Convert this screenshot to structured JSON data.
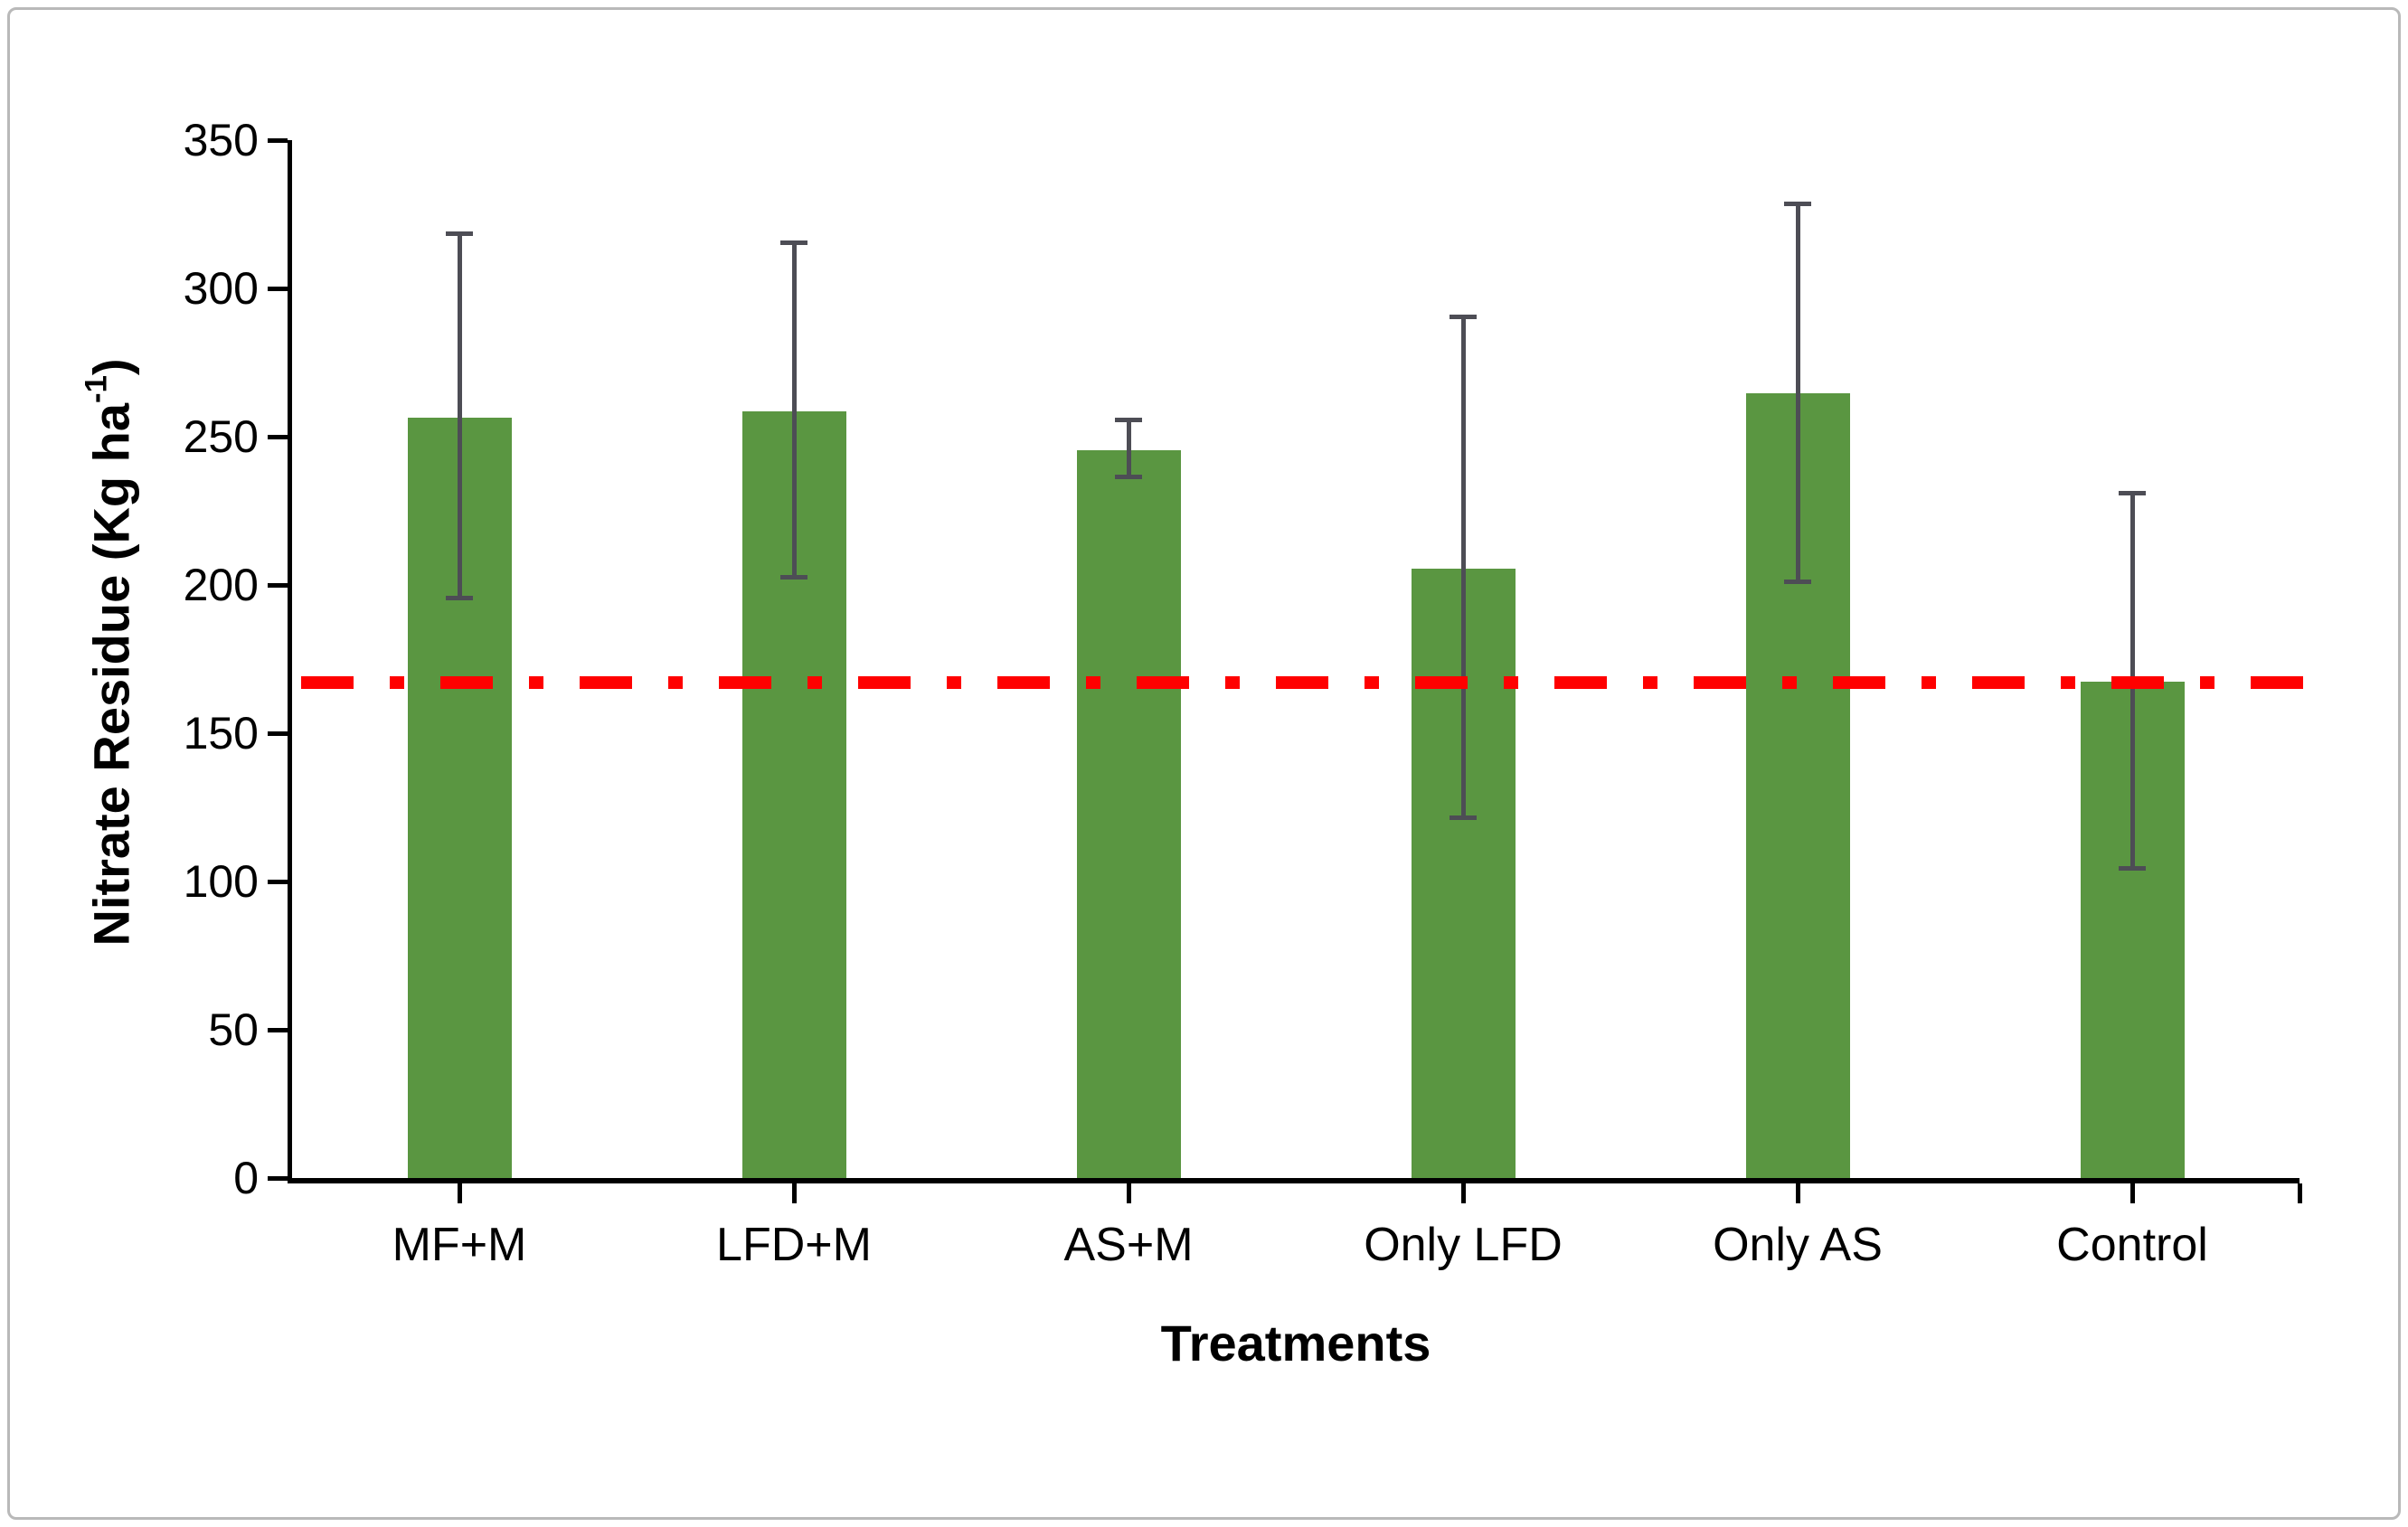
{
  "figure": {
    "background": "#ffffff",
    "border_color": "#b9b9b9"
  },
  "chart_data": {
    "type": "bar",
    "title": "",
    "categories": [
      "MF+M",
      "LFD+M",
      "AS+M",
      "Only LFD",
      "Only AS",
      "Control"
    ],
    "values": [
      256.5,
      258.5,
      245.5,
      205.5,
      264.5,
      167.5
    ],
    "error_top": [
      318.5,
      315.5,
      255.5,
      290.5,
      328.5,
      231
    ],
    "error_bottom": [
      195.5,
      202.5,
      236.5,
      121.5,
      201,
      104.5
    ],
    "xlabel": "Treatments",
    "ylabel": "Nitrate Residue (Kg ha⁻¹)",
    "ylabel_parts": {
      "main": "Nitrate Residue (Kg ha",
      "sup": "-1",
      "end": ")"
    },
    "ylim": [
      0,
      350
    ],
    "ytick_step": 50,
    "ytick_labels": [
      "0",
      "50",
      "100",
      "150",
      "200",
      "250",
      "300",
      "350"
    ],
    "reference_line": {
      "value": 167,
      "color": "#ff0000",
      "style": "dash-dot"
    },
    "colors": {
      "bar_fill": "#5a9641",
      "error_bar": "#4d4d55",
      "axis": "#000000"
    },
    "grid": false,
    "legend": false
  }
}
